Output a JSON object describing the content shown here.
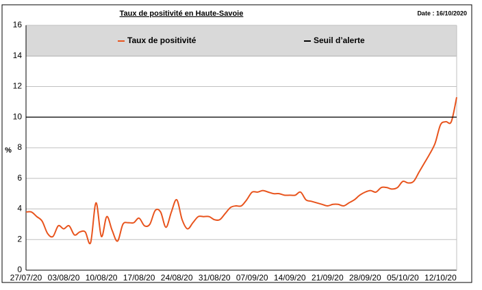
{
  "chart_data": {
    "type": "line",
    "title": "Taux de positivité en Haute-Savoie",
    "subtitle": "Date : 16/10/2020",
    "y_label": "%",
    "categories": [
      "27/07/20",
      null,
      null,
      null,
      null,
      null,
      null,
      "03/08/20",
      null,
      null,
      null,
      null,
      null,
      null,
      "10/08/20",
      null,
      null,
      null,
      null,
      null,
      null,
      "17/08/20",
      null,
      null,
      null,
      null,
      null,
      null,
      "24/08/20",
      null,
      null,
      null,
      null,
      null,
      null,
      "31/08/20",
      null,
      null,
      null,
      null,
      null,
      null,
      "07/09/20",
      null,
      null,
      null,
      null,
      null,
      null,
      "14/09/20",
      null,
      null,
      null,
      null,
      null,
      null,
      "21/09/20",
      null,
      null,
      null,
      null,
      null,
      null,
      "28/09/20",
      null,
      null,
      null,
      null,
      null,
      null,
      "05/10/20",
      null,
      null,
      null,
      null,
      null,
      null,
      "12/10/20",
      null,
      null,
      null
    ],
    "series": [
      {
        "name": "Taux de positivité",
        "color": "#e8531c",
        "values": [
          3.8,
          3.8,
          3.5,
          3.2,
          2.4,
          2.2,
          2.9,
          2.7,
          2.9,
          2.3,
          2.5,
          2.5,
          1.8,
          4.4,
          2.2,
          3.5,
          2.6,
          1.9,
          3.0,
          3.1,
          3.1,
          3.4,
          2.9,
          3.0,
          3.9,
          3.8,
          2.8,
          3.8,
          4.6,
          3.3,
          2.7,
          3.1,
          3.5,
          3.5,
          3.5,
          3.3,
          3.3,
          3.7,
          4.1,
          4.2,
          4.2,
          4.6,
          5.1,
          5.1,
          5.2,
          5.1,
          5.0,
          5.0,
          4.9,
          4.9,
          4.9,
          5.1,
          4.6,
          4.5,
          4.4,
          4.3,
          4.2,
          4.3,
          4.3,
          4.2,
          4.4,
          4.6,
          4.9,
          5.1,
          5.2,
          5.1,
          5.4,
          5.4,
          5.3,
          5.4,
          5.8,
          5.7,
          5.8,
          6.4,
          7.0,
          7.6,
          8.3,
          9.5,
          9.7,
          9.7,
          11.3
        ]
      },
      {
        "name": "Seuil d’alerte",
        "color": "#000000",
        "values": [
          10,
          10,
          10,
          10,
          10,
          10,
          10,
          10,
          10,
          10,
          10,
          10,
          10,
          10,
          10,
          10,
          10,
          10,
          10,
          10,
          10,
          10,
          10,
          10,
          10,
          10,
          10,
          10,
          10,
          10,
          10,
          10,
          10,
          10,
          10,
          10,
          10,
          10,
          10,
          10,
          10,
          10,
          10,
          10,
          10,
          10,
          10,
          10,
          10,
          10,
          10,
          10,
          10,
          10,
          10,
          10,
          10,
          10,
          10,
          10,
          10,
          10,
          10,
          10,
          10,
          10,
          10,
          10,
          10,
          10,
          10,
          10,
          10,
          10,
          10,
          10,
          10,
          10,
          10,
          10,
          10
        ]
      }
    ],
    "ylim": [
      0,
      16
    ],
    "yticks": [
      0,
      2,
      4,
      6,
      8,
      10,
      12,
      14,
      16
    ],
    "grid": true
  }
}
